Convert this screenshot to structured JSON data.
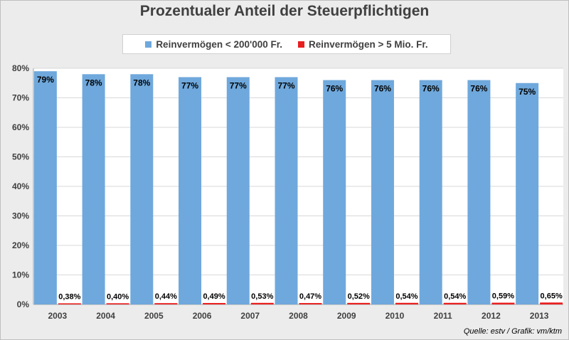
{
  "chart_data": {
    "type": "bar",
    "title": "Prozentualer Anteil der Steuerpflichtigen",
    "categories": [
      "2003",
      "2004",
      "2005",
      "2006",
      "2007",
      "2008",
      "2009",
      "2010",
      "2011",
      "2012",
      "2013"
    ],
    "series": [
      {
        "name": "Reinvermögen < 200'000 Fr.",
        "color": "#6fa8dc",
        "values": [
          79,
          78,
          78,
          77,
          77,
          77,
          76,
          76,
          76,
          76,
          75
        ],
        "labels": [
          "79%",
          "78%",
          "78%",
          "77%",
          "77%",
          "77%",
          "76%",
          "76%",
          "76%",
          "76%",
          "75%"
        ]
      },
      {
        "name": "Reinvermögen > 5 Mio. Fr.",
        "color": "#e81f1f",
        "values": [
          0.38,
          0.4,
          0.44,
          0.49,
          0.53,
          0.47,
          0.52,
          0.54,
          0.54,
          0.59,
          0.65
        ],
        "labels": [
          "0,38%",
          "0,40%",
          "0,44%",
          "0,49%",
          "0,53%",
          "0,47%",
          "0,52%",
          "0,54%",
          "0,54%",
          "0,59%",
          "0,65%"
        ]
      }
    ],
    "yticks": [
      "0%",
      "10%",
      "20%",
      "30%",
      "40%",
      "50%",
      "60%",
      "70%",
      "80%"
    ],
    "ylim": [
      0,
      80
    ],
    "grid": true,
    "legend_position": "top"
  },
  "source": "Quelle: estv / Grafik: vm/ktm"
}
